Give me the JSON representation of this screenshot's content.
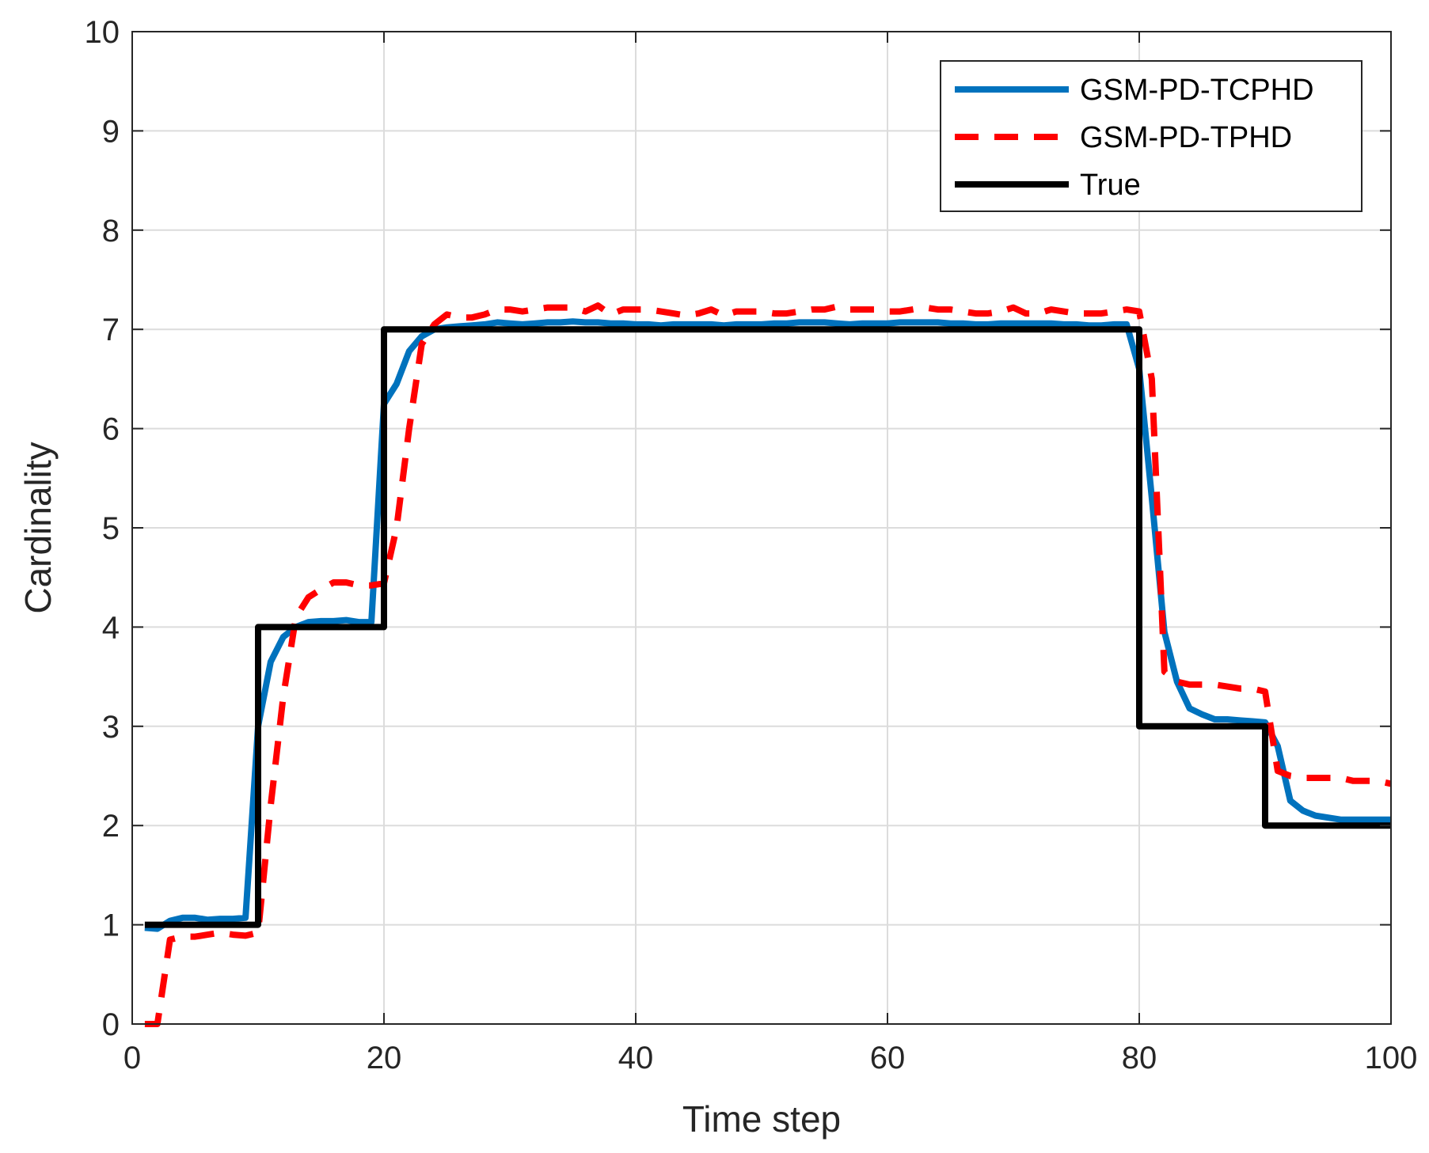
{
  "chart_data": {
    "type": "line",
    "title": "",
    "xlabel": "Time step",
    "ylabel": "Cardinality",
    "xlim": [
      0,
      100
    ],
    "ylim": [
      0,
      10
    ],
    "xticks": [
      0,
      20,
      40,
      60,
      80,
      100
    ],
    "yticks": [
      0,
      1,
      2,
      3,
      4,
      5,
      6,
      7,
      8,
      9,
      10
    ],
    "grid": true,
    "legend_position": "top-right",
    "series": [
      {
        "name": "GSM-PD-TCPHD",
        "color": "#0072BD",
        "style": "solid",
        "x": [
          1,
          2,
          3,
          4,
          5,
          6,
          7,
          8,
          9,
          10,
          11,
          12,
          13,
          14,
          15,
          16,
          17,
          18,
          19,
          20,
          21,
          22,
          23,
          24,
          25,
          26,
          27,
          28,
          29,
          30,
          31,
          32,
          33,
          34,
          35,
          36,
          37,
          38,
          39,
          40,
          41,
          42,
          43,
          44,
          45,
          46,
          47,
          48,
          49,
          50,
          51,
          52,
          53,
          54,
          55,
          56,
          57,
          58,
          59,
          60,
          61,
          62,
          63,
          64,
          65,
          66,
          67,
          68,
          69,
          70,
          71,
          72,
          73,
          74,
          75,
          76,
          77,
          78,
          79,
          80,
          81,
          82,
          83,
          84,
          85,
          86,
          87,
          88,
          89,
          90,
          91,
          92,
          93,
          94,
          95,
          96,
          97,
          98,
          99,
          100
        ],
        "y": [
          0.97,
          0.96,
          1.04,
          1.07,
          1.07,
          1.05,
          1.06,
          1.06,
          1.07,
          3.0,
          3.65,
          3.9,
          4.0,
          4.05,
          4.06,
          4.06,
          4.07,
          4.05,
          4.05,
          6.25,
          6.45,
          6.78,
          6.93,
          7.0,
          7.02,
          7.03,
          7.04,
          7.05,
          7.07,
          7.06,
          7.05,
          7.06,
          7.07,
          7.07,
          7.08,
          7.07,
          7.07,
          7.06,
          7.06,
          7.05,
          7.05,
          7.04,
          7.05,
          7.05,
          7.05,
          7.05,
          7.04,
          7.05,
          7.05,
          7.05,
          7.06,
          7.06,
          7.07,
          7.07,
          7.07,
          7.06,
          7.05,
          7.06,
          7.06,
          7.06,
          7.07,
          7.07,
          7.07,
          7.07,
          7.06,
          7.06,
          7.05,
          7.05,
          7.06,
          7.06,
          7.06,
          7.06,
          7.06,
          7.05,
          7.05,
          7.04,
          7.04,
          7.05,
          7.05,
          6.6,
          5.3,
          3.95,
          3.45,
          3.18,
          3.12,
          3.07,
          3.07,
          3.06,
          3.05,
          3.04,
          2.8,
          2.25,
          2.15,
          2.1,
          2.08,
          2.06,
          2.06,
          2.06,
          2.06,
          2.06
        ]
      },
      {
        "name": "GSM-PD-TPHD",
        "color": "#FF0000",
        "style": "dashed",
        "x": [
          1,
          2,
          3,
          4,
          5,
          6,
          7,
          8,
          9,
          10,
          11,
          12,
          13,
          14,
          15,
          16,
          17,
          18,
          19,
          20,
          21,
          22,
          23,
          24,
          25,
          26,
          27,
          28,
          29,
          30,
          31,
          32,
          33,
          34,
          35,
          36,
          37,
          38,
          39,
          40,
          41,
          42,
          43,
          44,
          45,
          46,
          47,
          48,
          49,
          50,
          51,
          52,
          53,
          54,
          55,
          56,
          57,
          58,
          59,
          60,
          61,
          62,
          63,
          64,
          65,
          66,
          67,
          68,
          69,
          70,
          71,
          72,
          73,
          74,
          75,
          76,
          77,
          78,
          79,
          80,
          81,
          82,
          83,
          84,
          85,
          86,
          87,
          88,
          89,
          90,
          91,
          92,
          93,
          94,
          95,
          96,
          97,
          98,
          99,
          100
        ],
        "y": [
          0.0,
          0.0,
          0.85,
          0.88,
          0.88,
          0.9,
          0.92,
          0.9,
          0.89,
          0.92,
          2.2,
          3.3,
          4.1,
          4.3,
          4.38,
          4.45,
          4.45,
          4.42,
          4.42,
          4.44,
          5.0,
          6.0,
          6.85,
          7.05,
          7.15,
          7.12,
          7.12,
          7.15,
          7.2,
          7.2,
          7.18,
          7.2,
          7.22,
          7.22,
          7.22,
          7.18,
          7.24,
          7.15,
          7.2,
          7.2,
          7.2,
          7.18,
          7.16,
          7.14,
          7.16,
          7.2,
          7.14,
          7.18,
          7.18,
          7.18,
          7.16,
          7.16,
          7.18,
          7.2,
          7.2,
          7.23,
          7.2,
          7.2,
          7.2,
          7.18,
          7.18,
          7.2,
          7.22,
          7.2,
          7.2,
          7.18,
          7.16,
          7.16,
          7.18,
          7.22,
          7.16,
          7.16,
          7.2,
          7.18,
          7.16,
          7.16,
          7.16,
          7.18,
          7.2,
          7.18,
          6.5,
          3.55,
          3.45,
          3.42,
          3.42,
          3.42,
          3.4,
          3.38,
          3.38,
          3.35,
          2.55,
          2.5,
          2.48,
          2.48,
          2.48,
          2.48,
          2.45,
          2.45,
          2.45,
          2.42
        ]
      },
      {
        "name": "True",
        "color": "#000000",
        "style": "solid",
        "x": [
          1,
          10,
          10,
          20,
          20,
          80,
          80,
          90,
          90,
          100
        ],
        "y": [
          1,
          1,
          4,
          4,
          7,
          7,
          3,
          3,
          2,
          2
        ]
      }
    ]
  }
}
